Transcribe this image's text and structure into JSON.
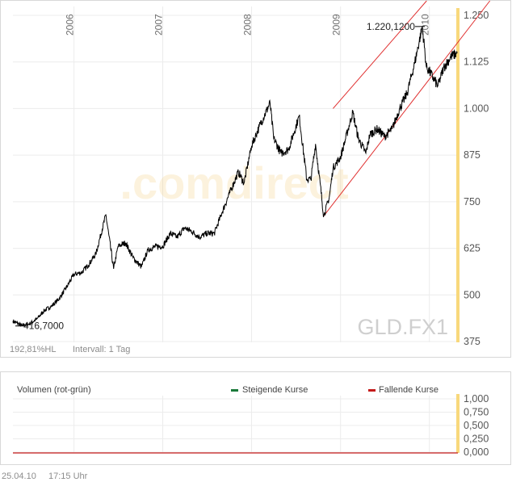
{
  "chart_data": [
    {
      "type": "line",
      "symbol": "GLD.FX1",
      "watermark": ".comdirect",
      "years": [
        "2006",
        "2007",
        "2008",
        "2009",
        "2010"
      ],
      "y_ticks": [
        "1.250",
        "1.125",
        "1.000",
        "875",
        "750",
        "625",
        "500",
        "375"
      ],
      "ylim": [
        375,
        1250
      ],
      "x": [
        "2005-04-25",
        "2005-06-01",
        "2005-07-01",
        "2005-08-01",
        "2005-09-01",
        "2005-10-01",
        "2005-11-01",
        "2005-12-01",
        "2006-01-01",
        "2006-02-01",
        "2006-03-01",
        "2006-04-01",
        "2006-05-12",
        "2006-06-13",
        "2006-07-01",
        "2006-08-01",
        "2006-09-01",
        "2006-10-05",
        "2006-11-01",
        "2006-12-01",
        "2007-01-01",
        "2007-02-01",
        "2007-03-01",
        "2007-04-01",
        "2007-05-01",
        "2007-06-01",
        "2007-07-01",
        "2007-08-01",
        "2007-09-01",
        "2007-10-01",
        "2007-11-08",
        "2007-12-01",
        "2008-01-01",
        "2008-02-01",
        "2008-03-17",
        "2008-04-01",
        "2008-05-01",
        "2008-06-01",
        "2008-07-15",
        "2008-08-15",
        "2008-09-01",
        "2008-09-20",
        "2008-10-24",
        "2008-11-15",
        "2008-12-01",
        "2009-01-01",
        "2009-02-20",
        "2009-03-15",
        "2009-04-15",
        "2009-05-01",
        "2009-06-01",
        "2009-07-01",
        "2009-08-01",
        "2009-09-01",
        "2009-10-01",
        "2009-11-01",
        "2009-12-03",
        "2009-12-20",
        "2010-01-01",
        "2010-02-05",
        "2010-03-01",
        "2010-04-01",
        "2010-04-25"
      ],
      "values": [
        430,
        418,
        422,
        435,
        458,
        470,
        490,
        520,
        555,
        560,
        580,
        610,
        715,
        570,
        630,
        640,
        600,
        575,
        620,
        630,
        630,
        665,
        655,
        680,
        670,
        655,
        665,
        665,
        720,
        770,
        830,
        800,
        900,
        950,
        1015,
        920,
        880,
        890,
        980,
        810,
        810,
        905,
        712,
        760,
        840,
        870,
        990,
        920,
        880,
        930,
        945,
        925,
        945,
        1000,
        1040,
        1120,
        1220,
        1110,
        1100,
        1060,
        1110,
        1140,
        1148
      ],
      "annotations": [
        {
          "label": "1.220,1200",
          "date": "2009-12-03",
          "value": 1220
        },
        {
          "label": "416,7000",
          "date": "2005-05-25",
          "value": 416.7
        }
      ],
      "trend_channel": [
        {
          "from": {
            "date": "2008-10-24",
            "value": 712
          },
          "to": {
            "date": "2010-04-25",
            "value": 1175
          }
        },
        {
          "from": {
            "date": "2008-12-01",
            "value": 1000
          },
          "to": {
            "date": "2010-04-25",
            "value": 1383
          }
        }
      ],
      "info": {
        "hl": "192,81%HL",
        "interval": "Intervall: 1 Tag"
      }
    },
    {
      "type": "bar",
      "title": "Volumen (rot-grün)",
      "legend": [
        {
          "name": "Steigende Kurse",
          "color": "#1a7a3a"
        },
        {
          "name": "Fallende Kurse",
          "color": "#c41a1a"
        }
      ],
      "y_ticks": [
        "1,000",
        "0,750",
        "0,500",
        "0,250",
        "0,000"
      ],
      "ylim": [
        0,
        1
      ],
      "values": []
    }
  ],
  "footer": {
    "date": "25.04.10",
    "time": "17:15 Uhr"
  },
  "colors": {
    "price_line": "#000000",
    "trend": "#e03030",
    "axis_highlight": "#f8d87c",
    "watermark": "#f2c66a"
  }
}
